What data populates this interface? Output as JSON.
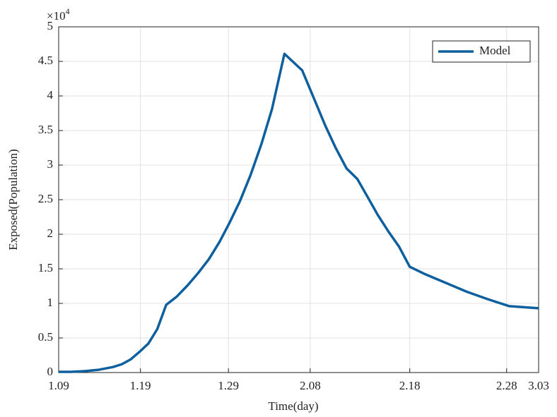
{
  "chart_data": {
    "type": "line",
    "x_label": "Time(day)",
    "y_label": "Exposed(Population)",
    "y_multiplier": {
      "base": "×10",
      "exponent": "4"
    },
    "x": [
      0,
      1.4,
      2.9,
      4.5,
      6.1,
      7.1,
      8.1,
      9.1,
      10.1,
      11.1,
      12.1,
      13.3,
      14.5,
      15.7,
      16.9,
      18.1,
      19.2,
      20.4,
      21.6,
      22.8,
      24.0,
      25.4,
      27.4,
      28.8,
      30.0,
      31.2,
      32.4,
      33.6,
      34.8,
      35.9,
      37.1,
      38.3,
      39.5,
      41.1,
      43.5,
      45.9,
      48.3,
      50.7,
      54
    ],
    "series": [
      {
        "name": "Model",
        "color": "#0e5f9e",
        "values": [
          0.01,
          0.01,
          0.02,
          0.04,
          0.08,
          0.12,
          0.19,
          0.3,
          0.42,
          0.63,
          0.98,
          1.1,
          1.26,
          1.44,
          1.64,
          1.89,
          2.16,
          2.48,
          2.86,
          3.3,
          3.81,
          4.61,
          4.37,
          3.94,
          3.57,
          3.24,
          2.95,
          2.8,
          2.53,
          2.28,
          2.04,
          1.82,
          1.53,
          1.43,
          1.3,
          1.17,
          1.06,
          0.96,
          0.93
        ]
      }
    ],
    "xlim": [
      0,
      54
    ],
    "xticks": [
      {
        "value": 0,
        "label": "1.09"
      },
      {
        "value": 9.2,
        "label": "1.19"
      },
      {
        "value": 19.1,
        "label": "1.29"
      },
      {
        "value": 28.3,
        "label": "2.08"
      },
      {
        "value": 39.5,
        "label": "2.18"
      },
      {
        "value": 50.4,
        "label": "2.28"
      },
      {
        "value": 54,
        "label": "3.03"
      }
    ],
    "ylim": [
      0,
      5
    ],
    "yticks": [
      0,
      0.5,
      1,
      1.5,
      2,
      2.5,
      3,
      3.5,
      4,
      4.5,
      5
    ],
    "grid": true,
    "legend": "top-right"
  }
}
